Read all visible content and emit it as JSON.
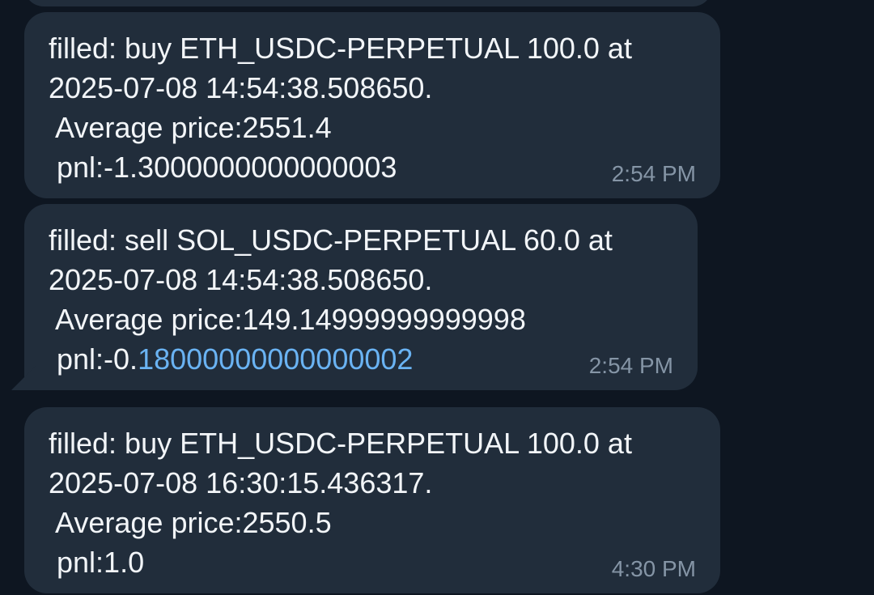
{
  "messages": [
    {
      "lines": [
        "filled: buy ETH_USDC-PERPETUAL 100.0 at",
        "2025-07-08 14:54:38.508650.",
        " Average price:2551.4"
      ],
      "pnl": {
        "text": " pnl:-1.3000000000000003"
      },
      "time": "2:54 PM"
    },
    {
      "lines": [
        "filled: sell SOL_USDC-PERPETUAL 60.0 at",
        "2025-07-08 14:54:38.508650.",
        " Average price:149.14999999999998"
      ],
      "pnl": {
        "text": " pnl:-0.",
        "link": "18000000000000002"
      },
      "time": "2:54 PM"
    },
    {
      "lines": [
        "filled: buy ETH_USDC-PERPETUAL 100.0 at",
        "2025-07-08 16:30:15.436317.",
        " Average price:2550.5"
      ],
      "pnl": {
        "text": " pnl:1.0"
      },
      "time": "4:30 PM"
    }
  ]
}
